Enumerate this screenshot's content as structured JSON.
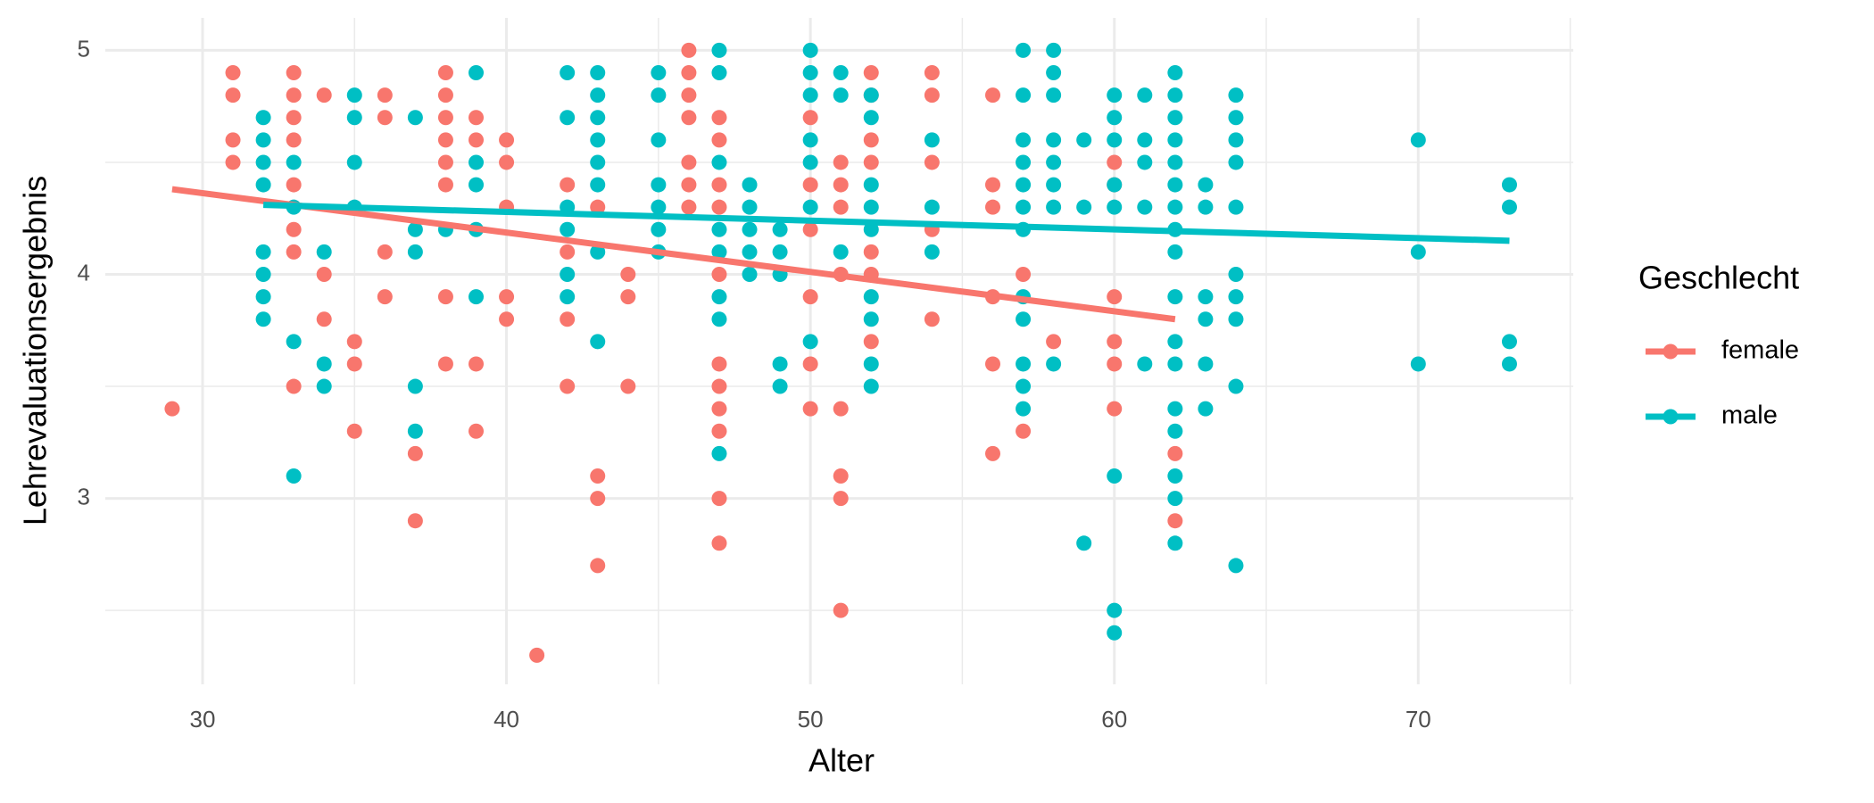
{
  "chart_data": {
    "type": "scatter",
    "x_label": "Alter",
    "y_label": "Lehrevaluationsergebnis",
    "legend_title": "Geschlecht",
    "legend_position": "right",
    "grid": true,
    "xlim": [
      26.8,
      75.1
    ],
    "ylim": [
      2.17,
      5.145
    ],
    "xticks": [
      30,
      40,
      50,
      60,
      70
    ],
    "yticks": [
      3,
      4,
      5
    ],
    "xticks_minor": [
      35,
      45,
      55,
      65,
      75
    ],
    "yticks_minor": [
      2.5,
      3.5,
      4.5
    ],
    "series": [
      {
        "name": "female",
        "color": "#F8766D",
        "x": [
          29,
          31,
          31,
          31,
          31,
          33,
          33,
          33,
          33,
          33,
          33,
          33,
          33,
          34,
          34,
          34,
          35,
          35,
          35,
          36,
          36,
          36,
          36,
          37,
          37,
          38,
          38,
          38,
          38,
          38,
          38,
          38,
          38,
          39,
          39,
          39,
          39,
          40,
          40,
          40,
          40,
          40,
          41,
          42,
          42,
          42,
          42,
          43,
          43,
          43,
          43,
          44,
          44,
          44,
          46,
          46,
          46,
          46,
          46,
          46,
          46,
          47,
          47,
          47,
          47,
          47,
          47,
          47,
          47,
          47,
          47,
          47,
          50,
          50,
          50,
          50,
          50,
          50,
          51,
          51,
          51,
          51,
          51,
          51,
          51,
          51,
          52,
          52,
          52,
          52,
          52,
          52,
          52,
          54,
          54,
          54,
          54,
          54,
          56,
          56,
          56,
          56,
          56,
          56,
          57,
          57,
          58,
          60,
          60,
          60,
          60,
          60,
          60,
          62,
          62
        ],
        "y": [
          3.4,
          4.9,
          4.8,
          4.6,
          4.5,
          4.9,
          4.8,
          4.7,
          4.6,
          4.4,
          4.2,
          4.1,
          3.5,
          4.8,
          4.0,
          3.8,
          3.7,
          3.6,
          3.3,
          4.8,
          4.7,
          4.1,
          3.9,
          3.2,
          2.9,
          4.9,
          4.8,
          4.7,
          4.6,
          4.5,
          4.4,
          3.9,
          3.6,
          4.7,
          4.6,
          3.6,
          3.3,
          4.6,
          4.5,
          4.3,
          3.9,
          3.8,
          2.3,
          4.4,
          4.1,
          3.8,
          3.5,
          4.3,
          3.1,
          3.0,
          2.7,
          4.0,
          3.9,
          3.5,
          5.0,
          4.9,
          4.8,
          4.7,
          4.5,
          4.4,
          4.3,
          4.7,
          4.6,
          4.4,
          4.3,
          4.0,
          3.6,
          3.5,
          3.4,
          3.3,
          3.0,
          2.8,
          4.7,
          4.4,
          4.2,
          3.9,
          3.6,
          3.4,
          4.5,
          4.4,
          4.3,
          4.0,
          3.4,
          3.1,
          3.0,
          2.5,
          4.9,
          4.8,
          4.6,
          4.5,
          4.1,
          4.0,
          3.7,
          4.9,
          4.8,
          4.5,
          4.2,
          3.8,
          4.8,
          4.4,
          4.3,
          3.9,
          3.6,
          3.2,
          4.0,
          3.3,
          3.7,
          4.5,
          4.4,
          3.9,
          3.7,
          3.6,
          3.4,
          3.2,
          2.9
        ],
        "fit": {
          "x": [
            29,
            62
          ],
          "y": [
            4.38,
            3.8
          ]
        }
      },
      {
        "name": "male",
        "color": "#00BFC4",
        "x": [
          32,
          32,
          32,
          32,
          32,
          32,
          32,
          32,
          33,
          33,
          33,
          33,
          34,
          34,
          34,
          35,
          35,
          35,
          35,
          37,
          37,
          37,
          37,
          37,
          38,
          39,
          39,
          39,
          39,
          39,
          42,
          42,
          42,
          42,
          42,
          42,
          43,
          43,
          43,
          43,
          43,
          43,
          43,
          43,
          45,
          45,
          45,
          45,
          45,
          45,
          45,
          47,
          47,
          47,
          47,
          47,
          47,
          47,
          47,
          48,
          48,
          48,
          48,
          48,
          49,
          49,
          49,
          49,
          49,
          50,
          50,
          50,
          50,
          50,
          50,
          50,
          51,
          51,
          51,
          52,
          52,
          52,
          52,
          52,
          52,
          52,
          52,
          52,
          54,
          54,
          54,
          57,
          57,
          57,
          57,
          57,
          57,
          57,
          57,
          57,
          57,
          57,
          57,
          58,
          58,
          58,
          58,
          58,
          58,
          58,
          58,
          59,
          59,
          59,
          60,
          60,
          60,
          60,
          60,
          60,
          60,
          60,
          61,
          61,
          61,
          61,
          61,
          62,
          62,
          62,
          62,
          62,
          62,
          62,
          62,
          62,
          62,
          62,
          62,
          62,
          62,
          62,
          62,
          62,
          63,
          63,
          63,
          63,
          63,
          63,
          64,
          64,
          64,
          64,
          64,
          64,
          64,
          64,
          64,
          64,
          70,
          70,
          70,
          73,
          73,
          73,
          73
        ],
        "y": [
          4.7,
          4.6,
          4.5,
          4.4,
          4.1,
          4.0,
          3.9,
          3.8,
          4.5,
          4.3,
          3.7,
          3.1,
          4.1,
          3.6,
          3.5,
          4.8,
          4.7,
          4.5,
          4.3,
          4.7,
          4.2,
          4.1,
          3.5,
          3.3,
          4.2,
          4.9,
          4.5,
          4.4,
          4.2,
          3.9,
          4.9,
          4.7,
          4.3,
          4.2,
          4.0,
          3.9,
          4.9,
          4.8,
          4.7,
          4.6,
          4.5,
          4.4,
          4.1,
          3.7,
          4.9,
          4.8,
          4.6,
          4.4,
          4.3,
          4.2,
          4.1,
          5.0,
          4.9,
          4.5,
          4.2,
          4.1,
          3.9,
          3.8,
          3.2,
          4.4,
          4.3,
          4.2,
          4.1,
          4.0,
          4.2,
          4.1,
          4.0,
          3.6,
          3.5,
          5.0,
          4.9,
          4.8,
          4.6,
          4.5,
          4.3,
          3.7,
          4.9,
          4.8,
          4.1,
          4.8,
          4.7,
          4.4,
          4.3,
          4.2,
          3.9,
          3.8,
          3.6,
          3.5,
          4.6,
          4.3,
          4.1,
          5.0,
          4.8,
          4.6,
          4.5,
          4.4,
          4.3,
          4.2,
          3.9,
          3.8,
          3.6,
          3.5,
          3.4,
          5.0,
          4.9,
          4.8,
          4.6,
          4.5,
          4.4,
          4.3,
          3.6,
          4.6,
          4.3,
          2.8,
          4.8,
          4.7,
          4.6,
          4.4,
          4.3,
          3.1,
          2.5,
          2.4,
          4.8,
          4.6,
          4.5,
          4.3,
          3.6,
          4.9,
          4.8,
          4.7,
          4.6,
          4.5,
          4.4,
          4.3,
          4.2,
          4.1,
          3.9,
          3.7,
          3.6,
          3.4,
          3.3,
          3.1,
          3.0,
          2.8,
          4.4,
          4.3,
          3.9,
          3.8,
          3.6,
          3.4,
          4.8,
          4.7,
          4.6,
          4.5,
          4.3,
          4.0,
          3.9,
          3.8,
          3.5,
          2.7,
          4.6,
          4.1,
          3.6,
          4.4,
          4.3,
          3.7,
          3.6
        ],
        "fit": {
          "x": [
            32,
            73
          ],
          "y": [
            4.31,
            4.15
          ]
        }
      }
    ]
  }
}
